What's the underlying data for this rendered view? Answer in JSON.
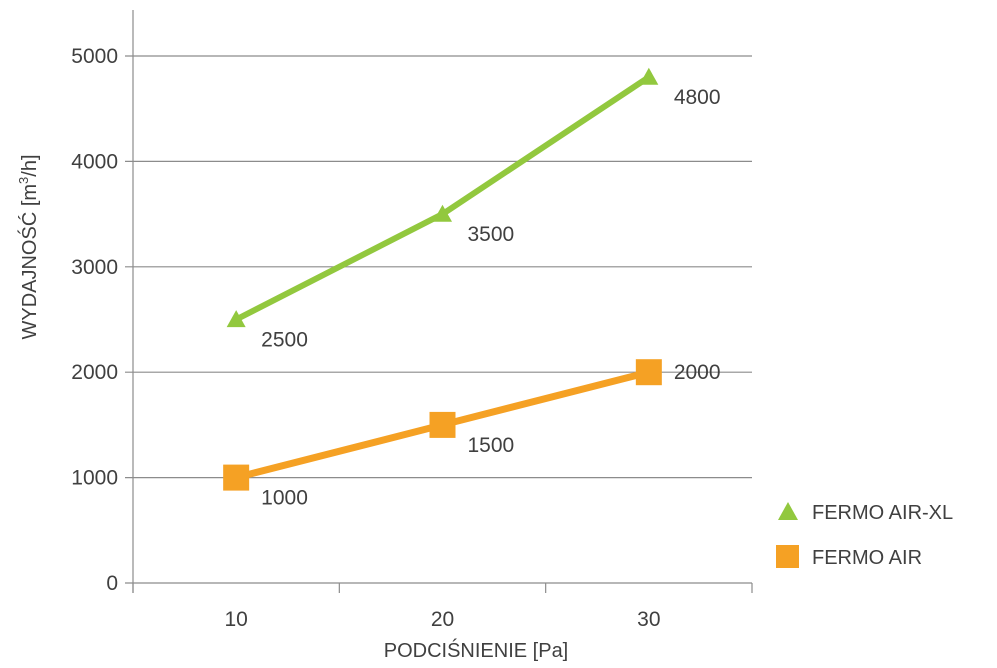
{
  "chart_data": {
    "type": "line",
    "categories": [
      "10",
      "20",
      "30"
    ],
    "x": [
      10,
      20,
      30
    ],
    "ylim": [
      0,
      5000
    ],
    "yticks": [
      0,
      1000,
      2000,
      3000,
      4000,
      5000
    ],
    "ytick_labels": [
      "0",
      "1000",
      "2000",
      "3000",
      "4000",
      "5000"
    ],
    "xlabel": "PODCIŚNIENIE [Pa]",
    "ylabel_prefix": "WYDAJNOŚĆ [m",
    "ylabel_sup": "3",
    "ylabel_suffix": "/h]",
    "grid": true,
    "legend_position": "bottom-right",
    "series": [
      {
        "name": "FERMO AIR-XL",
        "values": [
          2500,
          3500,
          4800
        ],
        "labels": [
          "2500",
          "3500",
          "4800"
        ],
        "color": "#92c83e",
        "marker": "triangle"
      },
      {
        "name": "FERMO AIR",
        "values": [
          1000,
          1500,
          2000
        ],
        "labels": [
          "1000",
          "1500",
          "2000"
        ],
        "color": "#f5a124",
        "marker": "square"
      }
    ]
  }
}
